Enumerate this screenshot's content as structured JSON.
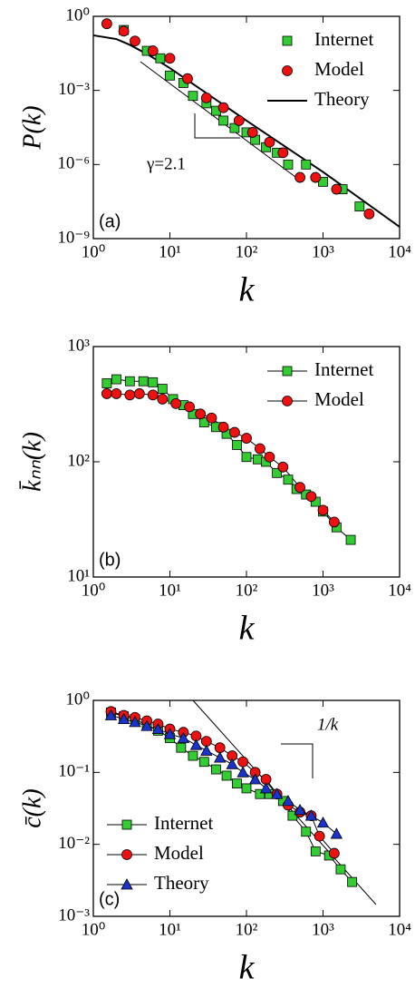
{
  "chart_data": [
    {
      "type": "scatter",
      "panel_label": "(a)",
      "xlabel": "k",
      "ylabel": "P(k)",
      "xscale": "log",
      "yscale": "log",
      "xlim": [
        1,
        10000
      ],
      "ylim": [
        1e-09,
        1
      ],
      "xticks": [
        {
          "value": 1,
          "label": "10⁰"
        },
        {
          "value": 10,
          "label": "10¹"
        },
        {
          "value": 100,
          "label": "10²"
        },
        {
          "value": 1000,
          "label": "10³"
        },
        {
          "value": 10000,
          "label": "10⁴"
        }
      ],
      "yticks": [
        {
          "value": 1e-09,
          "label": "10⁻⁹"
        },
        {
          "value": 1e-06,
          "label": "10⁻⁶"
        },
        {
          "value": 0.001,
          "label": "10⁻³"
        },
        {
          "value": 1,
          "label": "10⁰"
        }
      ],
      "legend": "upper right",
      "annotation": "γ=2.1",
      "series": [
        {
          "name": "Internet",
          "color": "#33cc33",
          "marker": "square",
          "style": "markers",
          "x": [
            2.5,
            5,
            7.5,
            10,
            15,
            20,
            30,
            40,
            50,
            70,
            100,
            130,
            180,
            250,
            350,
            600,
            1000,
            1800,
            3000
          ],
          "values": [
            0.28,
            0.04,
            0.02,
            0.004,
            0.002,
            0.0006,
            0.0003,
            0.00015,
            6e-05,
            3e-05,
            2e-05,
            1e-05,
            5e-06,
            3e-06,
            1e-06,
            1e-06,
            2e-07,
            1e-07,
            2e-08
          ]
        },
        {
          "name": "Model",
          "color": "#ee1111",
          "marker": "circle",
          "style": "markers",
          "x": [
            1.5,
            2.5,
            3.5,
            6,
            10,
            17,
            30,
            50,
            80,
            120,
            200,
            300,
            500,
            800,
            1500,
            4000
          ],
          "values": [
            0.5,
            0.25,
            0.1,
            0.04,
            0.02,
            0.003,
            0.0005,
            0.0002,
            6e-05,
            2e-05,
            8e-06,
            3e-06,
            3e-07,
            3e-07,
            1e-07,
            1e-08
          ]
        },
        {
          "name": "Theory",
          "color": "#000000",
          "marker": "none",
          "style": "line",
          "x": [
            1,
            2,
            3,
            5,
            10,
            100,
            1000,
            10000
          ],
          "values": [
            0.17,
            0.12,
            0.07,
            0.03,
            0.008,
            6e-05,
            5e-07,
            3e-09
          ]
        }
      ]
    },
    {
      "type": "line",
      "panel_label": "(b)",
      "xlabel": "k",
      "ylabel": "k̄ₙₙ(k)",
      "xscale": "log",
      "yscale": "log",
      "xlim": [
        1,
        10000
      ],
      "ylim": [
        10,
        1000
      ],
      "xticks": [
        {
          "value": 1,
          "label": "10⁰"
        },
        {
          "value": 10,
          "label": "10¹"
        },
        {
          "value": 100,
          "label": "10²"
        },
        {
          "value": 1000,
          "label": "10³"
        },
        {
          "value": 10000,
          "label": "10⁴"
        }
      ],
      "yticks": [
        {
          "value": 10,
          "label": "10¹"
        },
        {
          "value": 100,
          "label": "10²"
        },
        {
          "value": 1000,
          "label": "10³"
        }
      ],
      "legend": "upper right",
      "series": [
        {
          "name": "Internet",
          "color": "#33cc33",
          "marker": "square",
          "style": "line+markers",
          "x": [
            1.5,
            2,
            3,
            4.5,
            6,
            8,
            11,
            15,
            20,
            28,
            40,
            55,
            75,
            100,
            140,
            180,
            250,
            350,
            450,
            600,
            800,
            1000,
            1500,
            2300
          ],
          "values": [
            480,
            520,
            500,
            500,
            490,
            430,
            350,
            310,
            260,
            220,
            200,
            175,
            140,
            110,
            105,
            100,
            80,
            70,
            58,
            52,
            45,
            37,
            27,
            21
          ]
        },
        {
          "name": "Model",
          "color": "#ee1111",
          "marker": "circle",
          "style": "line+markers",
          "x": [
            1.5,
            2,
            3,
            4,
            6,
            8,
            12,
            18,
            25,
            35,
            50,
            70,
            100,
            150,
            200,
            300,
            500,
            700,
            1000,
            1400
          ],
          "values": [
            390,
            390,
            380,
            390,
            380,
            350,
            320,
            300,
            260,
            240,
            200,
            180,
            160,
            130,
            110,
            90,
            60,
            50,
            38,
            30
          ]
        }
      ]
    },
    {
      "type": "line",
      "panel_label": "(c)",
      "xlabel": "k",
      "ylabel": "c̄(k)",
      "xscale": "log",
      "yscale": "log",
      "xlim": [
        1,
        10000
      ],
      "ylim": [
        0.001,
        1
      ],
      "xticks": [
        {
          "value": 1,
          "label": "10⁰"
        },
        {
          "value": 10,
          "label": "10¹"
        },
        {
          "value": 100,
          "label": "10²"
        },
        {
          "value": 1000,
          "label": "10³"
        },
        {
          "value": 10000,
          "label": "10⁴"
        }
      ],
      "yticks": [
        {
          "value": 0.001,
          "label": "10⁻³"
        },
        {
          "value": 0.01,
          "label": "10⁻²"
        },
        {
          "value": 0.1,
          "label": "10⁻¹"
        },
        {
          "value": 1,
          "label": "10⁰"
        }
      ],
      "legend": "lower left",
      "annotation": "1/k",
      "series": [
        {
          "name": "Internet",
          "color": "#33cc33",
          "marker": "square",
          "style": "line+markers",
          "x": [
            1.7,
            2.5,
            3.5,
            5,
            7,
            10,
            14,
            20,
            28,
            40,
            55,
            75,
            100,
            150,
            200,
            300,
            400,
            600,
            800,
            1200,
            1700,
            2400
          ],
          "values": [
            0.68,
            0.6,
            0.55,
            0.45,
            0.38,
            0.3,
            0.22,
            0.17,
            0.14,
            0.11,
            0.09,
            0.07,
            0.06,
            0.05,
            0.05,
            0.04,
            0.025,
            0.015,
            0.008,
            0.007,
            0.0045,
            0.003
          ]
        },
        {
          "name": "Model",
          "color": "#ee1111",
          "marker": "circle",
          "style": "line+markers",
          "x": [
            1.7,
            2.5,
            3.5,
            5,
            7,
            10,
            15,
            22,
            30,
            45,
            65,
            90,
            130,
            180,
            250,
            350,
            500,
            700,
            900,
            1400
          ],
          "values": [
            0.7,
            0.62,
            0.58,
            0.52,
            0.47,
            0.4,
            0.36,
            0.32,
            0.27,
            0.22,
            0.17,
            0.14,
            0.1,
            0.08,
            0.05,
            0.035,
            0.028,
            0.025,
            0.013,
            0.0075
          ]
        },
        {
          "name": "Theory",
          "color": "#1a33cc",
          "marker": "triangle",
          "style": "line+markers",
          "x": [
            1.7,
            2.5,
            3.5,
            5,
            7,
            10,
            15,
            22,
            30,
            45,
            65,
            90,
            130,
            180,
            250,
            350,
            500,
            700,
            1000,
            1500
          ],
          "values": [
            0.62,
            0.55,
            0.5,
            0.44,
            0.4,
            0.34,
            0.3,
            0.24,
            0.2,
            0.16,
            0.13,
            0.1,
            0.08,
            0.06,
            0.05,
            0.04,
            0.03,
            0.025,
            0.02,
            0.014
          ]
        }
      ]
    }
  ]
}
